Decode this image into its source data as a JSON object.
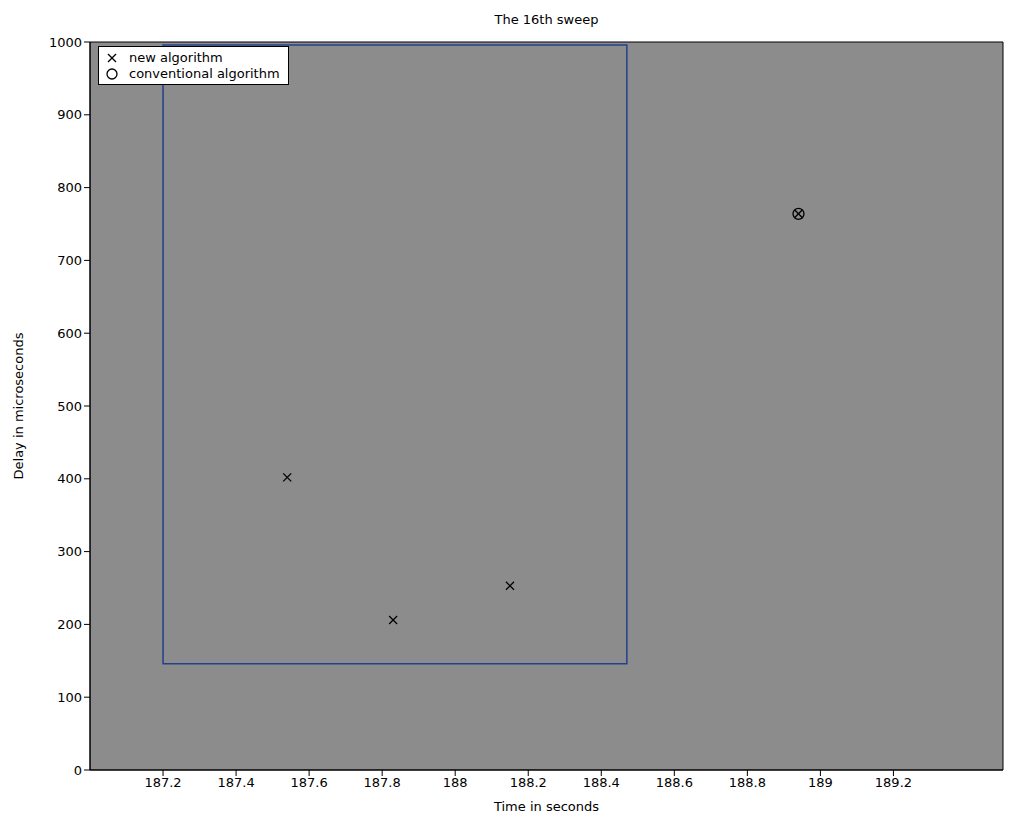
{
  "chart_data": {
    "type": "scatter",
    "title": "The 16th sweep",
    "x_label": "Time in seconds",
    "y_label": "Delay in microseconds",
    "xlim": [
      187.0,
      189.5
    ],
    "xticks": [
      187.2,
      187.4,
      187.6,
      187.8,
      188,
      188.2,
      188.4,
      188.6,
      188.8,
      189,
      189.2
    ],
    "ylim": [
      0,
      1000
    ],
    "yticks": [
      0,
      100,
      200,
      300,
      400,
      500,
      600,
      700,
      800,
      900,
      1000
    ],
    "grid": false,
    "legend": "upper left",
    "color": "#8c8c8c",
    "series": [
      {
        "name": "new algorithm",
        "color": "#000000",
        "marker": "x",
        "x": [
          187.54,
          187.83,
          188.15,
          188.94
        ],
        "values": [
          402,
          206,
          253,
          764
        ]
      },
      {
        "name": "conventional algorithm",
        "color": "#000000",
        "marker": "circle",
        "x": [
          188.94
        ],
        "values": [
          764
        ]
      }
    ],
    "box": {
      "color": "#23408e",
      "x": [
        187.2,
        188.47
      ],
      "y": [
        146,
        996
      ]
    }
  }
}
